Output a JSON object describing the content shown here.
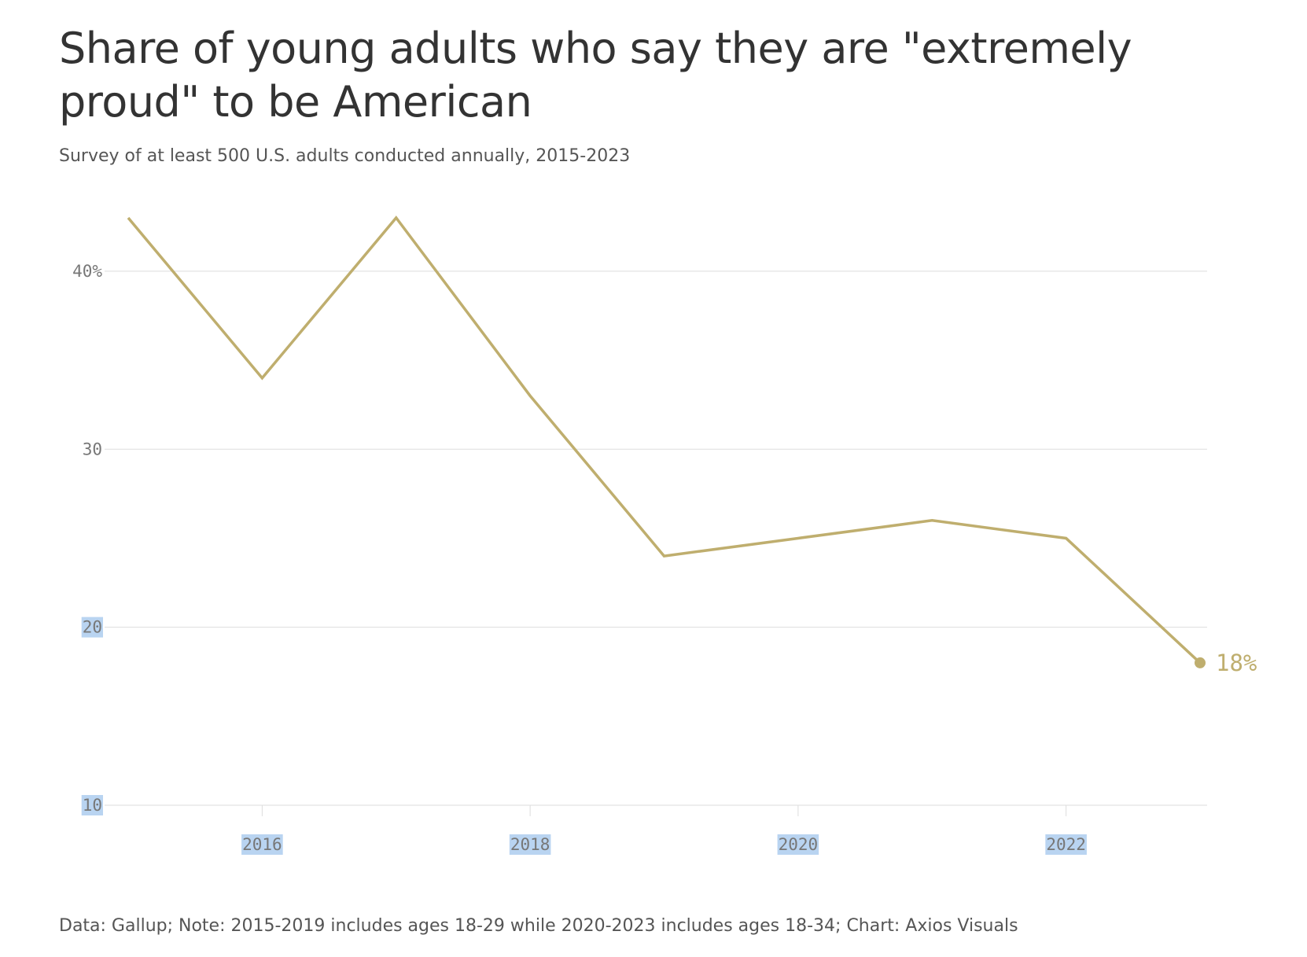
{
  "title": "Share of young adults who say they are \"extremely proud\" to be American",
  "subtitle": "Survey of at least 500 U.S. adults conducted annually, 2015-2023",
  "footer": "Data: Gallup; Note: 2015-2019 includes ages 18-29 while 2020-2023 includes ages 18-34; Chart: Axios Visuals",
  "colors": {
    "line": "#bfae6e",
    "grid": "#dddddd",
    "tick_text": "#777777",
    "tick_highlight": "#b9d4f1"
  },
  "chart_data": {
    "type": "line",
    "title": "Share of young adults who say they are \"extremely proud\" to be American",
    "subtitle": "Survey of at least 500 U.S. adults conducted annually, 2015-2023",
    "xlabel": "",
    "ylabel": "",
    "x": [
      2015,
      2016,
      2017,
      2018,
      2019,
      2020,
      2021,
      2022,
      2023
    ],
    "series": [
      {
        "values": [
          43,
          34,
          43,
          33,
          24,
          25,
          26,
          25,
          18
        ]
      }
    ],
    "xlim": [
      2015,
      2023
    ],
    "ylim": [
      10,
      43
    ],
    "x_ticks": [
      {
        "value": 2016,
        "label": "2016"
      },
      {
        "value": 2018,
        "label": "2018"
      },
      {
        "value": 2020,
        "label": "2020"
      },
      {
        "value": 2022,
        "label": "2022"
      }
    ],
    "y_ticks": [
      {
        "value": 40,
        "label": "40%"
      },
      {
        "value": 30,
        "label": "30"
      },
      {
        "value": 20,
        "label": "20"
      },
      {
        "value": 10,
        "label": "10"
      }
    ],
    "end_label": "18%",
    "grid": true,
    "legend": "none"
  }
}
